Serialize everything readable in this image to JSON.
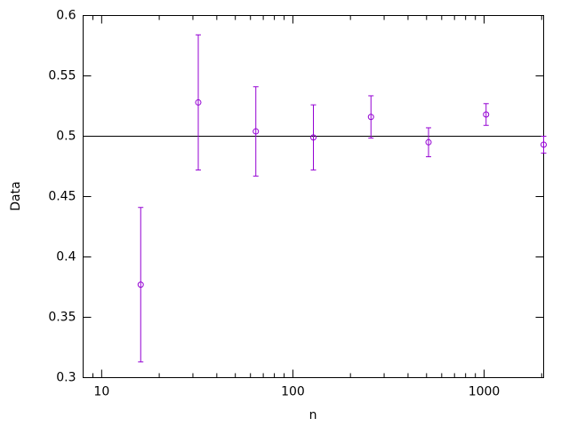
{
  "chart_data": {
    "type": "errorbar",
    "x_label": "n",
    "y_label": "Data",
    "x": [
      16,
      32,
      64,
      128,
      256,
      512,
      1024,
      2048
    ],
    "series": [
      {
        "color": "#9400d3",
        "values": [
          0.377,
          0.528,
          0.504,
          0.499,
          0.516,
          0.495,
          0.518,
          0.493
        ],
        "errors": [
          0.064,
          0.056,
          0.037,
          0.027,
          0.0175,
          0.012,
          0.009,
          0.007
        ]
      }
    ],
    "reference": 0.5,
    "xlim": [
      8,
      2048
    ],
    "xticks": [
      10,
      100,
      1000
    ],
    "xlog": true,
    "xminor": true,
    "ylim": [
      0.3,
      0.6
    ],
    "yticks": [
      0.3,
      0.35,
      0.4,
      0.45,
      0.5,
      0.55,
      0.6
    ]
  }
}
